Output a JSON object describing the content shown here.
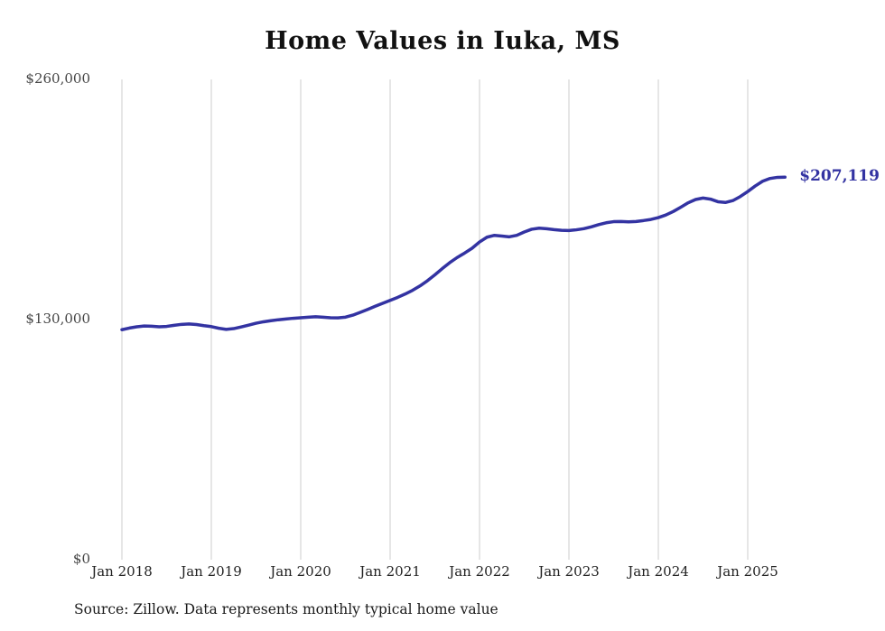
{
  "colors": {
    "line": "#3333a2",
    "grid": "#cccccc",
    "annotation": "#3333a2"
  },
  "chart_data": {
    "type": "line",
    "title": "Home Values in Iuka, MS",
    "xlabel": "",
    "ylabel": "",
    "ylim": [
      0,
      260000
    ],
    "grid": "vertical-only",
    "x_tick_labels": [
      "Jan 2018",
      "Jan 2019",
      "Jan 2020",
      "Jan 2021",
      "Jan 2022",
      "Jan 2023",
      "Jan 2024",
      "Jan 2025"
    ],
    "y_ticks": [
      {
        "value": 0,
        "label": "$0"
      },
      {
        "value": 130000,
        "label": "$130,000"
      },
      {
        "value": 260000,
        "label": "$260,000"
      }
    ],
    "start_month": "Jan 2018",
    "months_per_x_tick": 12,
    "series": [
      {
        "name": "Monthly typical home value",
        "values": [
          124500,
          125400,
          126100,
          126500,
          126400,
          126100,
          126300,
          126900,
          127400,
          127600,
          127300,
          126700,
          126200,
          125300,
          124700,
          125100,
          126000,
          127000,
          128000,
          128800,
          129400,
          129900,
          130300,
          130700,
          131000,
          131300,
          131500,
          131300,
          131000,
          130900,
          131300,
          132400,
          133900,
          135500,
          137200,
          138800,
          140400,
          142000,
          143800,
          145800,
          148200,
          151000,
          154200,
          157600,
          160800,
          163600,
          166000,
          168600,
          172000,
          174600,
          175600,
          175200,
          174800,
          175600,
          177400,
          178900,
          179500,
          179200,
          178700,
          178300,
          178200,
          178600,
          179200,
          180200,
          181400,
          182400,
          183000,
          183100,
          182900,
          183100,
          183600,
          184200,
          185200,
          186600,
          188500,
          190800,
          193200,
          195000,
          195800,
          195200,
          193800,
          193400,
          194400,
          196600,
          199300,
          202300,
          204900,
          206400,
          207000,
          207119
        ]
      }
    ],
    "end_annotation": "$207,119",
    "source": "Source: Zillow. Data represents monthly typical home value"
  }
}
